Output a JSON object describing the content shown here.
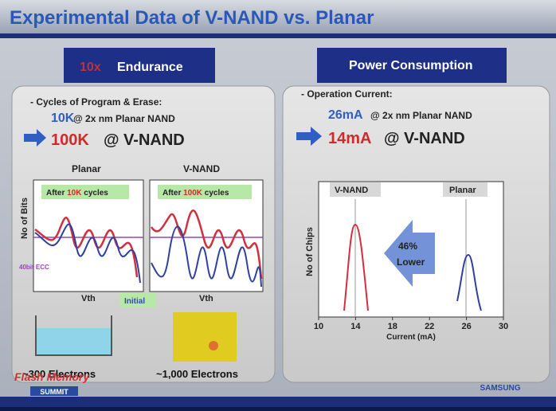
{
  "header": {
    "title": "Experimental Data of V-NAND vs. Planar"
  },
  "left": {
    "badge_prefix": "10x",
    "badge": "Endurance",
    "heading": "- Cycles of Program & Erase:",
    "line1_value": "10K",
    "line1_text": "@ 2x nm Planar NAND",
    "line2_value": "100K",
    "line2_text": "@ V-NAND",
    "chart1": {
      "title": "Planar",
      "note_prefix": "After ",
      "note_value": "10K",
      "note_suffix": " cycles",
      "xlabel": "Vth"
    },
    "chart2": {
      "title": "V-NAND",
      "note_prefix": "After ",
      "note_value": "100K",
      "note_suffix": " cycles",
      "xlabel": "Vth"
    },
    "ylabel": "No of Bits",
    "ecc": "40bit ECC",
    "initial": "Initial",
    "caption1": "~300 Electrons",
    "caption2": "~1,000 Electrons"
  },
  "right": {
    "badge": "Power Consumption",
    "heading": "- Operation Current:",
    "line1_value": "26mA",
    "line1_text": "@ 2x nm Planar NAND",
    "line2_value": "14mA",
    "line2_text": "@ V-NAND",
    "chart": {
      "label_vnand": "V-NAND",
      "label_planar": "Planar",
      "ylabel": "No of Chips",
      "arrow_value": "46%",
      "arrow_text": "Lower",
      "xlabel": "Current (mA)",
      "xlim": [
        10,
        30
      ],
      "xticks": [
        10,
        14,
        18,
        22,
        26,
        30
      ]
    }
  },
  "footer": {
    "event_line1": "Flash Memory",
    "event_line2": "SUMMIT",
    "brand": "SAMSUNG"
  }
}
